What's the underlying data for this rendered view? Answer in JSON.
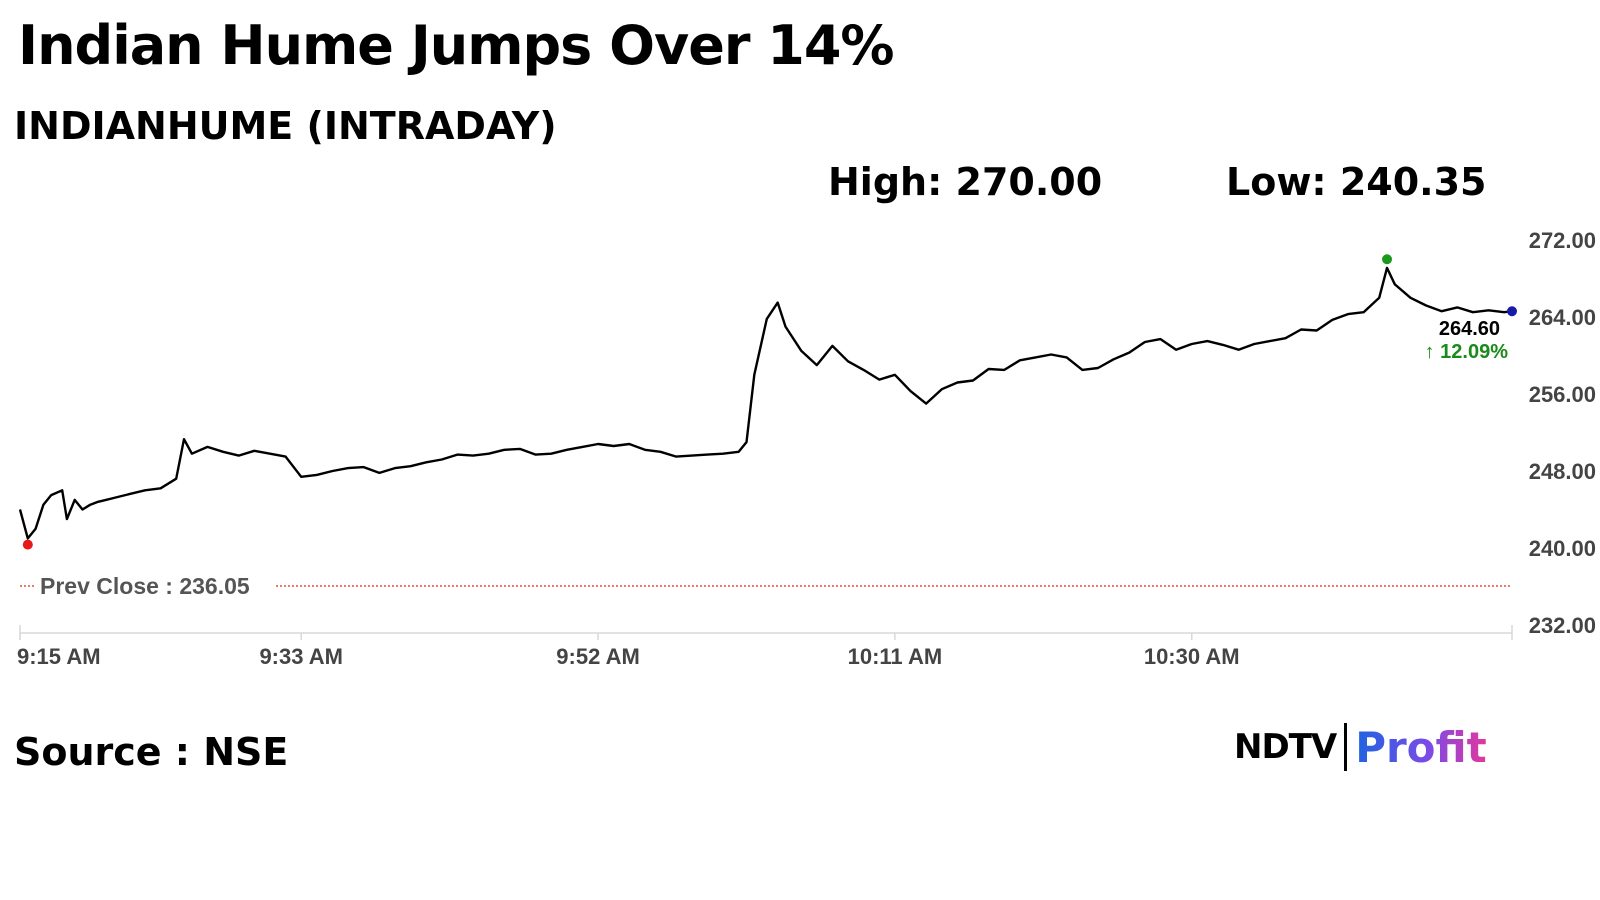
{
  "headline": "Indian Hume Jumps Over 14%",
  "subtitle": "INDIANHUME (INTRADAY)",
  "stats": {
    "high": "High: 270.00",
    "low": "Low: 240.35"
  },
  "source": "Source : NSE",
  "brand": {
    "left": "NDTV",
    "right": "Profit"
  },
  "colors": {
    "line": "#000000",
    "prev_close": "#e74c3c",
    "low_marker": "#e8191b",
    "high_marker": "#1a9a1a",
    "last_marker": "#1a1aa8",
    "change": "#1a8a1a"
  },
  "chart_data": {
    "type": "line",
    "title": "INDIANHUME (INTRADAY)",
    "x_tick_labels": [
      "9:15 AM",
      "9:33 AM",
      "9:52 AM",
      "10:11 AM",
      "10:30 AM"
    ],
    "x_tick_minutes": [
      0,
      18,
      37,
      56,
      75
    ],
    "x_range_minutes": [
      0,
      95.5
    ],
    "y_ticks": [
      "232.00",
      "240.00",
      "248.00",
      "256.00",
      "264.00",
      "272.00"
    ],
    "ylim": [
      232,
      272
    ],
    "prev_close": {
      "label": "Prev Close : 236.05",
      "value": 236.05
    },
    "last": {
      "label": "264.60",
      "change": "↑ 12.09%",
      "value": 264.6
    },
    "series": [
      {
        "x": [
          0,
          0.5,
          1,
          1.5,
          2,
          2.7,
          3,
          3.5,
          4,
          4.5,
          5,
          5.5,
          6,
          7,
          8,
          9,
          10,
          10.5,
          11,
          12,
          13,
          14,
          15,
          16,
          17,
          18,
          19,
          20,
          21,
          22,
          23,
          24,
          25,
          26,
          27,
          28,
          29,
          30,
          31,
          32,
          33,
          34,
          35,
          36,
          37,
          38,
          39,
          40,
          41,
          42,
          43,
          44,
          45,
          46,
          46.5,
          47,
          47.8,
          48.5,
          49,
          50,
          51,
          52,
          53,
          54,
          55,
          56,
          57,
          58,
          59,
          60,
          61,
          62,
          63,
          64,
          65,
          66,
          67,
          68,
          69,
          70,
          71,
          72,
          73,
          74,
          75,
          76,
          77,
          78,
          79,
          80,
          81,
          82,
          83,
          84,
          85,
          86,
          87,
          87.5,
          88,
          89,
          90,
          91,
          92,
          93,
          94,
          95,
          95.5
        ],
        "y": [
          244,
          241,
          242,
          244.5,
          245.5,
          246,
          243,
          245,
          244,
          244.5,
          244.8,
          245,
          245.2,
          245.6,
          246,
          246.2,
          247.2,
          251.3,
          249.8,
          250.5,
          250,
          249.6,
          250.1,
          249.8,
          249.5,
          247.4,
          247.6,
          248,
          248.3,
          248.4,
          247.8,
          248.3,
          248.5,
          248.9,
          249.2,
          249.7,
          249.6,
          249.8,
          250.2,
          250.3,
          249.7,
          249.8,
          250.2,
          250.5,
          250.8,
          250.6,
          250.8,
          250.2,
          250,
          249.5,
          249.6,
          249.7,
          249.8,
          250,
          251,
          258,
          263.8,
          265.5,
          263,
          260.5,
          259,
          261,
          259.4,
          258.5,
          257.5,
          258,
          256.3,
          255,
          256.5,
          257.2,
          257.4,
          258.6,
          258.5,
          259.5,
          259.8,
          260.1,
          259.8,
          258.5,
          258.7,
          259.6,
          260.3,
          261.4,
          261.7,
          260.6,
          261.2,
          261.5,
          261.1,
          260.6,
          261.2,
          261.5,
          261.8,
          262.7,
          262.6,
          263.7,
          264.3,
          264.5,
          266,
          269.1,
          267.4,
          266,
          265.2,
          264.6,
          265,
          264.5,
          264.7,
          264.5,
          264.6
        ]
      }
    ],
    "markers": [
      {
        "kind": "low",
        "x": 0.5,
        "y": 240.35
      },
      {
        "kind": "high",
        "x": 87.5,
        "y": 270.0
      },
      {
        "kind": "last",
        "x": 95.5,
        "y": 264.6
      }
    ]
  }
}
